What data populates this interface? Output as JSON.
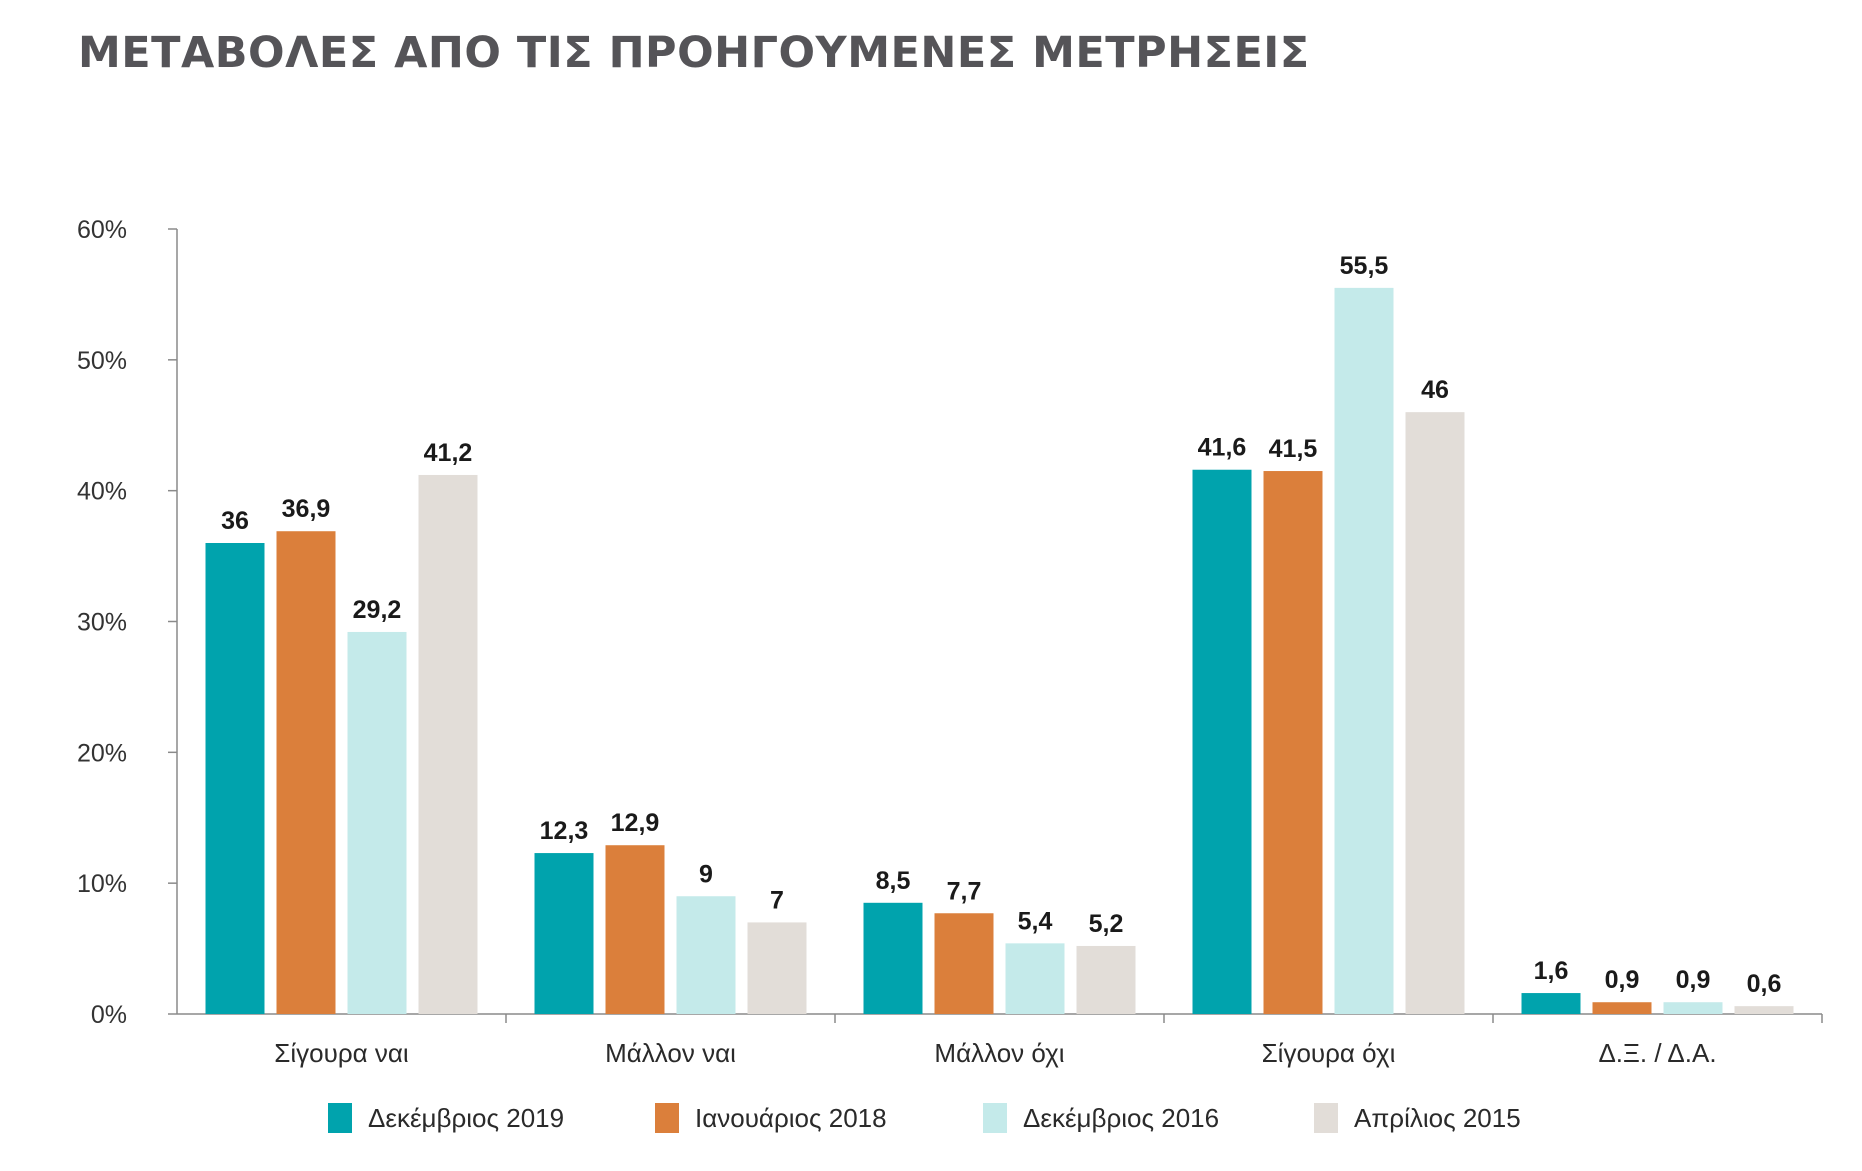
{
  "title": "ΜΕΤΑΒΟΛΕΣ ΑΠΟ ΤΙΣ ΠΡΟΗΓΟΥΜΕΝΕΣ ΜΕΤΡΗΣΕΙΣ",
  "chart_data": {
    "type": "bar",
    "title": "ΜΕΤΑΒΟΛΕΣ ΑΠΟ ΤΙΣ ΠΡΟΗΓΟΥΜΕΝΕΣ ΜΕΤΡΗΣΕΙΣ",
    "xlabel": "",
    "ylabel": "",
    "ylim": [
      0,
      60
    ],
    "yticks": [
      0,
      10,
      20,
      30,
      40,
      50,
      60
    ],
    "ytick_labels": [
      "0%",
      "10%",
      "20%",
      "30%",
      "40%",
      "50%",
      "60%"
    ],
    "categories": [
      "Σίγουρα ναι",
      "Μάλλον ναι",
      "Μάλλον όχι",
      "Σίγουρα όχι",
      "Δ.Ξ. / Δ.Α."
    ],
    "series": [
      {
        "name": "Δεκέμβριος 2019",
        "color": "#00a3ad",
        "values": [
          36,
          12.3,
          8.5,
          41.6,
          1.6
        ],
        "labels": [
          "36",
          "12,3",
          "8,5",
          "41,6",
          "1,6"
        ]
      },
      {
        "name": "Ιανουάριος 2018",
        "color": "#db7f3b",
        "values": [
          36.9,
          12.9,
          7.7,
          41.5,
          0.9
        ],
        "labels": [
          "36,9",
          "12,9",
          "7,7",
          "41,5",
          "0,9"
        ]
      },
      {
        "name": "Δεκέμβριος 2016",
        "color": "#c4eaea",
        "values": [
          29.2,
          9,
          5.4,
          55.5,
          0.9
        ],
        "labels": [
          "29,2",
          "9",
          "5,4",
          "55,5",
          "0,9"
        ]
      },
      {
        "name": "Απρίλιος 2015",
        "color": "#e2ddd8",
        "values": [
          41.2,
          7,
          5.2,
          46,
          0.6
        ],
        "labels": [
          "41,2",
          "7",
          "5,2",
          "46",
          "0,6"
        ]
      }
    ],
    "grid": false,
    "legend": "bottom"
  }
}
